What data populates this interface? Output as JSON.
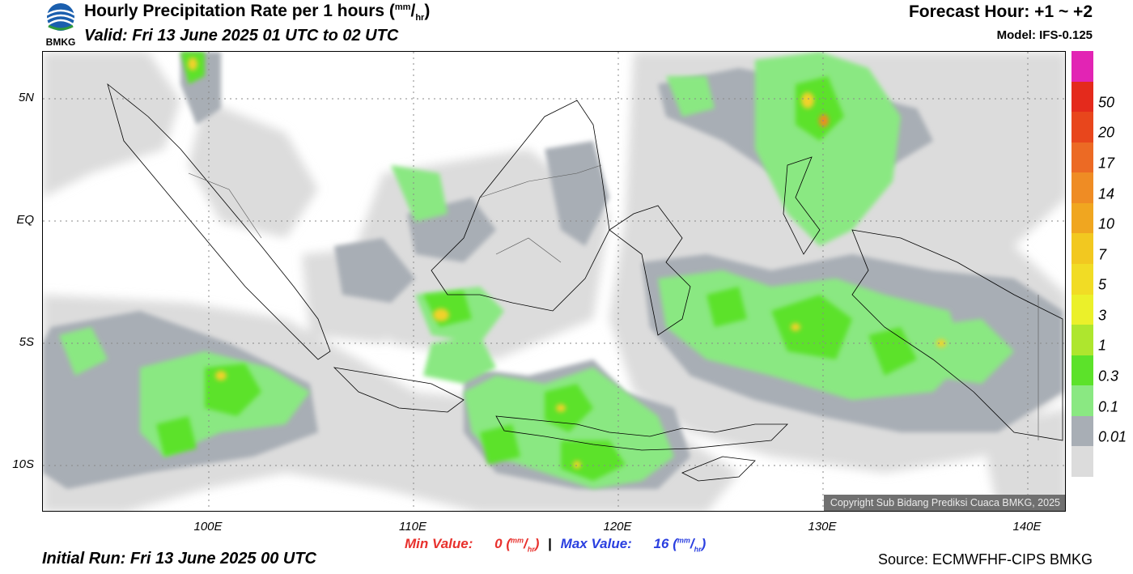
{
  "header": {
    "title_main": "Hourly Precipitation Rate per 1 hours (",
    "unit_num": "mm",
    "unit_den": "hr",
    "title_close": ")",
    "valid": "Valid: Fri 13 June 2025 01 UTC to 02 UTC",
    "forecast_hour": "Forecast Hour: +1 ~ +2",
    "model": "Model: IFS-0.125",
    "logo_text": "BMKG"
  },
  "axes": {
    "y_labels": [
      {
        "label": "5N",
        "lat": 5
      },
      {
        "label": "EQ",
        "lat": 0
      },
      {
        "label": "5S",
        "lat": -5
      },
      {
        "label": "10S",
        "lat": -10
      }
    ],
    "x_labels": [
      {
        "label": "100E",
        "lon": 100
      },
      {
        "label": "110E",
        "lon": 110
      },
      {
        "label": "120E",
        "lon": 120
      },
      {
        "label": "130E",
        "lon": 130
      },
      {
        "label": "140E",
        "lon": 140
      }
    ],
    "lon_range": [
      92,
      142
    ],
    "lat_range": [
      -12,
      7
    ]
  },
  "stats": {
    "min_label": "Min Value:",
    "min_value": "0",
    "max_label": "Max Value:",
    "max_value": "16",
    "unit_num": "mm",
    "unit_den": "hr"
  },
  "footer": {
    "initial_run": "Initial Run: Fri 13 June 2025 00 UTC",
    "source": "Source: ECMWFHF-CIPS BMKG",
    "copyright": "Copyright Sub Bidang Prediksi Cuaca BMKG, 2025"
  },
  "legend": {
    "colors": [
      "#e224b4",
      "#e42a1c",
      "#e8461c",
      "#ec6a24",
      "#ef8c24",
      "#f0a620",
      "#f2c820",
      "#f1dc25",
      "#ebf02a",
      "#aee62e",
      "#5ce22a",
      "#8ae882",
      "#a8aeb5",
      "#dcdcdc"
    ],
    "labels": [
      "50",
      "20",
      "17",
      "14",
      "10",
      "7",
      "5",
      "3",
      "1",
      "0.3",
      "0.1",
      "0.01"
    ]
  },
  "colors": {
    "precip_light": "#dcdcdc",
    "precip_grey": "#a8aeb5",
    "precip_light_green": "#8ae882",
    "precip_green": "#5ce22a",
    "precip_yellow": "#f2d22a",
    "precip_orange": "#ef8c24"
  }
}
